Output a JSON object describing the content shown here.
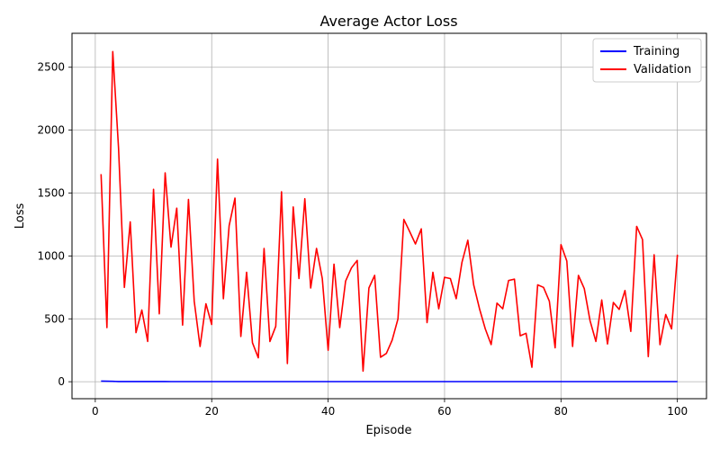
{
  "chart_data": {
    "type": "line",
    "title": "Average Actor Loss",
    "xlabel": "Episode",
    "ylabel": "Loss",
    "xlim": [
      -4,
      105
    ],
    "ylim": [
      -135,
      2770
    ],
    "xticks": [
      0,
      20,
      40,
      60,
      80,
      100
    ],
    "yticks": [
      0,
      500,
      1000,
      1500,
      2000,
      2500
    ],
    "grid": true,
    "legend_position": "top-right",
    "x": [
      1,
      2,
      3,
      4,
      5,
      6,
      7,
      8,
      9,
      10,
      11,
      12,
      13,
      14,
      15,
      16,
      17,
      18,
      19,
      20,
      21,
      22,
      23,
      24,
      25,
      26,
      27,
      28,
      29,
      30,
      31,
      32,
      33,
      34,
      35,
      36,
      37,
      38,
      39,
      40,
      41,
      42,
      43,
      44,
      45,
      46,
      47,
      48,
      49,
      50,
      51,
      52,
      53,
      54,
      55,
      56,
      57,
      58,
      59,
      60,
      61,
      62,
      63,
      64,
      65,
      66,
      67,
      68,
      69,
      70,
      71,
      72,
      73,
      74,
      75,
      76,
      77,
      78,
      79,
      80,
      81,
      82,
      83,
      84,
      85,
      86,
      87,
      88,
      89,
      90,
      91,
      92,
      93,
      94,
      95,
      96,
      97,
      98,
      99,
      100
    ],
    "series": [
      {
        "name": "Training",
        "color": "#0000ff",
        "values": [
          5,
          4,
          3,
          2,
          2,
          2,
          2,
          2,
          2,
          2,
          2,
          2,
          1,
          1,
          1,
          1,
          1,
          1,
          1,
          1,
          1,
          1,
          1,
          1,
          1,
          1,
          1,
          1,
          1,
          1,
          1,
          1,
          1,
          1,
          1,
          1,
          1,
          1,
          1,
          1,
          1,
          1,
          1,
          1,
          1,
          1,
          1,
          1,
          1,
          1,
          1,
          1,
          1,
          1,
          1,
          1,
          1,
          1,
          1,
          1,
          1,
          1,
          1,
          1,
          1,
          1,
          1,
          1,
          1,
          1,
          1,
          1,
          1,
          1,
          1,
          1,
          1,
          1,
          1,
          1,
          1,
          1,
          1,
          1,
          1,
          1,
          1,
          1,
          1,
          1,
          1,
          1,
          1,
          1,
          1,
          1,
          1,
          1,
          1,
          1
        ]
      },
      {
        "name": "Validation",
        "color": "#ff0000",
        "values": [
          1650,
          430,
          2625,
          1860,
          750,
          1270,
          390,
          570,
          320,
          1530,
          540,
          1660,
          1070,
          1380,
          450,
          1450,
          640,
          280,
          620,
          455,
          1770,
          660,
          1240,
          1460,
          360,
          870,
          310,
          190,
          1060,
          320,
          440,
          1510,
          145,
          1390,
          820,
          1455,
          745,
          1060,
          820,
          250,
          935,
          430,
          800,
          905,
          965,
          85,
          745,
          845,
          195,
          225,
          330,
          500,
          1290,
          1195,
          1095,
          1215,
          470,
          870,
          580,
          830,
          820,
          660,
          950,
          1125,
          770,
          580,
          420,
          295,
          625,
          580,
          805,
          815,
          365,
          385,
          115,
          770,
          750,
          640,
          270,
          1090,
          960,
          280,
          845,
          740,
          485,
          320,
          650,
          300,
          630,
          575,
          725,
          400,
          1235,
          1130,
          200,
          1010,
          295,
          535,
          420,
          1010
        ]
      }
    ]
  }
}
